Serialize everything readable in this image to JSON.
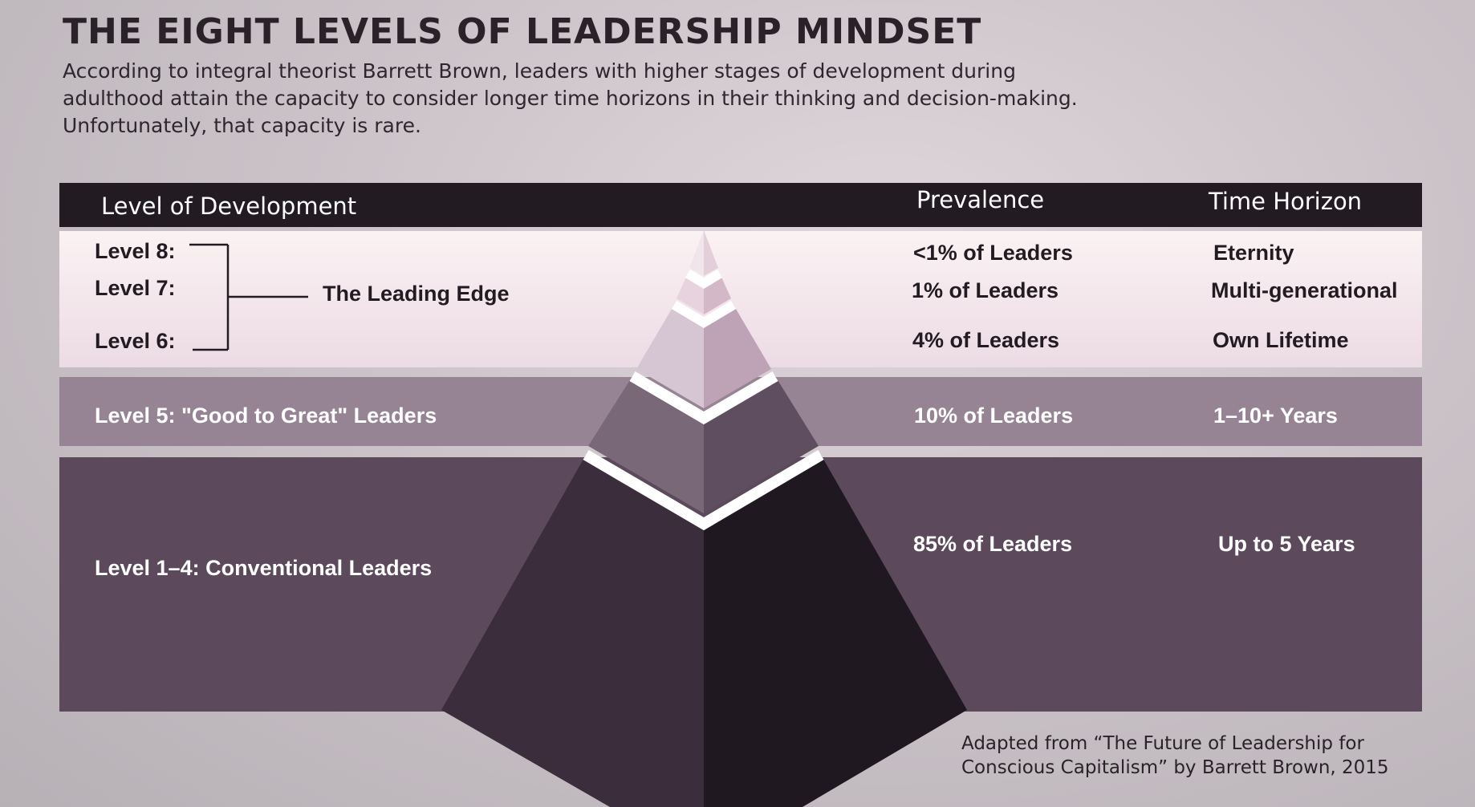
{
  "title": "THE EIGHT LEVELS OF LEADERSHIP MINDSET",
  "intro": "According to integral theorist Barrett Brown, leaders with higher stages of development during adulthood attain the capacity to consider longer time horizons in their thinking and decision-making. Unfortunately, that capacity is rare.",
  "header": {
    "level": "Level of Development",
    "prevalence": "Prevalence",
    "horizon": "Time Horizon"
  },
  "leading_edge": {
    "group_label": "The Leading Edge",
    "rows": [
      {
        "level": "Level 8:",
        "prevalence": "<1%  of Leaders",
        "horizon": "Eternity"
      },
      {
        "level": "Level 7:",
        "prevalence": "1% of Leaders",
        "horizon": "Multi-generational"
      },
      {
        "level": "Level 6:",
        "prevalence": "4% of Leaders",
        "horizon": "Own Lifetime"
      }
    ]
  },
  "level5": {
    "level": "Level 5: \"Good to Great\" Leaders",
    "prevalence": "10% of Leaders",
    "horizon": "1–10+ Years"
  },
  "conventional": {
    "level": "Level 1–4: Conventional Leaders",
    "prevalence": "85% of Leaders",
    "horizon": "Up to 5 Years"
  },
  "credit": {
    "line1": "Adapted from “The Future of Leadership for",
    "line2": "Conscious Capitalism” by Barrett Brown, 2015"
  },
  "colors": {
    "header_band": "#221b22",
    "leading_edge_band": "#f3e6ec",
    "level5_band": "#968494",
    "conventional_band": "#5c4a5c"
  }
}
